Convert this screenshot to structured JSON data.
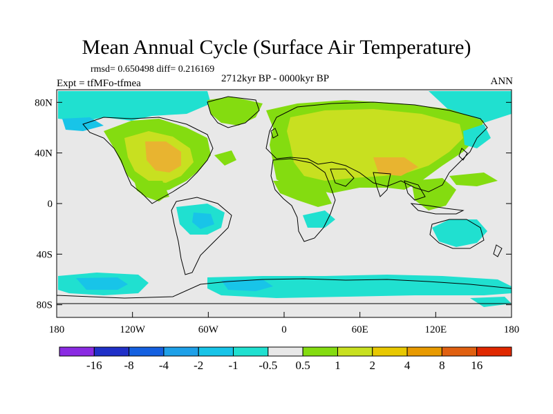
{
  "title": "Mean Annual Cycle (Surface Air Temperature)",
  "stats": "rmsd= 0.650498 diff= 0.216169",
  "expt": "Expt = tfMFo-tfmea",
  "period": "2712kyr BP - 0000kyr BP",
  "season": "ANN",
  "lat_ticks": [
    {
      "label": "80N",
      "value": 80
    },
    {
      "label": "40N",
      "value": 40
    },
    {
      "label": "0",
      "value": 0
    },
    {
      "label": "40S",
      "value": -40
    },
    {
      "label": "80S",
      "value": -80
    }
  ],
  "lon_ticks": [
    {
      "label": "180",
      "value": -180
    },
    {
      "label": "120W",
      "value": -120
    },
    {
      "label": "60W",
      "value": -60
    },
    {
      "label": "0",
      "value": 0
    },
    {
      "label": "60E",
      "value": 60
    },
    {
      "label": "120E",
      "value": 120
    },
    {
      "label": "180",
      "value": 180
    }
  ],
  "legend": {
    "labels": [
      "-16",
      "-8",
      "-4",
      "-2",
      "-1",
      "-0.5",
      "0.5",
      "1",
      "2",
      "4",
      "8",
      "16"
    ],
    "colors": [
      "#8a2be2",
      "#2030c8",
      "#1460e0",
      "#1ea0e8",
      "#18c4e8",
      "#20e0d0",
      "#e8e8e8",
      "#84dc10",
      "#c8e020",
      "#e8c800",
      "#e89a00",
      "#e06010",
      "#e02800"
    ]
  },
  "colors": {
    "ocean_background": "#e8e8e8",
    "warm_light": "#84dc10",
    "warm_mid": "#c8e020",
    "warm_high": "#e8b430",
    "cool_light": "#20e0d0",
    "cool_mid": "#18c4e8",
    "cool_deep": "#1ea0e8"
  }
}
